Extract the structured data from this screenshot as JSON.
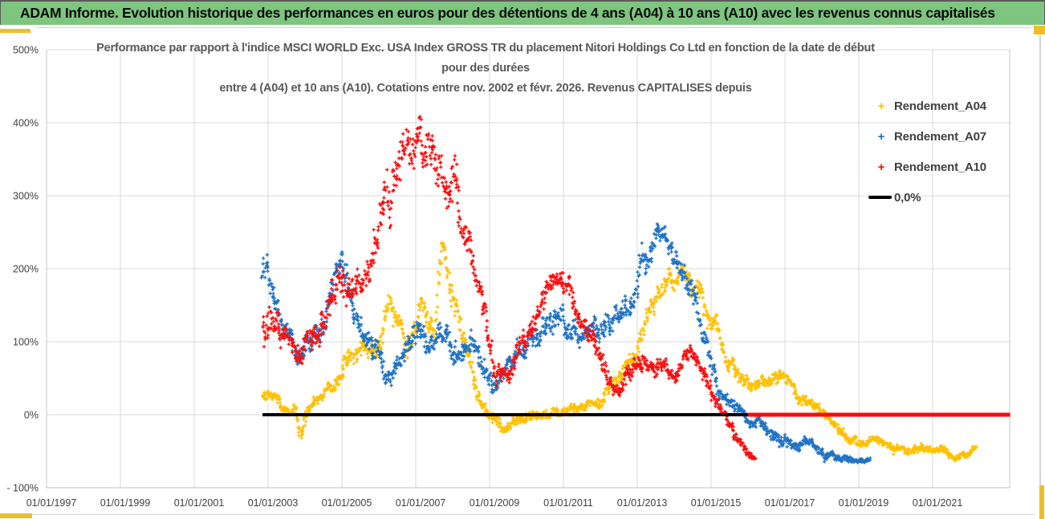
{
  "header": {
    "title": "ADAM Informe. Evolution historique des performances en euros pour des détentions de 4 ans (A04) à 10 ans (A10) avec les revenus connus capitalisés"
  },
  "chart": {
    "title_line1": "Performance par rapport à l'indice MSCI WORLD Exc. USA Index GROSS TR  du placement Nitori Holdings Co Ltd en fonction de la date de début",
    "title_line2": "pour des durées",
    "title_line3": "entre 4 (A04) et 10 ans (A10). Cotations entre nov. 2002 et févr. 2026. Revenus CAPITALISES depuis"
  },
  "legend": {
    "items": [
      {
        "label": "Rendement_A04",
        "marker": "plus",
        "color": "#FFC000"
      },
      {
        "label": "Rendement_A07",
        "marker": "plus",
        "color": "#1F72C4"
      },
      {
        "label": "Rendement_A10",
        "marker": "plus",
        "color": "#F90D0D"
      },
      {
        "label": "0,0%",
        "marker": "line",
        "color": "#000000"
      }
    ]
  },
  "chart_data": {
    "type": "scatter",
    "title": "Performance par rapport à l'indice MSCI WORLD Exc. USA Index GROSS TR du placement Nitori Holdings Co Ltd en fonction de la date de début pour des durées entre 4 (A04) et 10 ans (A10). Cotations entre nov. 2002 et févr. 2026. Revenus CAPITALISES depuis",
    "marker": "plus",
    "grid": true,
    "legend_position": "right-top",
    "x_axis": {
      "tick_labels": [
        "01/01/1997",
        "01/01/1999",
        "01/01/2001",
        "01/01/2003",
        "01/01/2005",
        "01/01/2007",
        "01/01/2009",
        "01/01/2011",
        "01/01/2013",
        "01/01/2015",
        "01/01/2017",
        "01/01/2019",
        "01/01/2021"
      ],
      "tick_years": [
        1997,
        1999,
        2001,
        2003,
        2005,
        2007,
        2009,
        2011,
        2013,
        2015,
        2017,
        2019,
        2021
      ],
      "range_years": [
        1997.0,
        2023.1
      ]
    },
    "y_axis": {
      "tick_labels": [
        "500%",
        "400%",
        "300%",
        "200%",
        "100%",
        "0%",
        "- 100%"
      ],
      "tick_values": [
        500,
        400,
        300,
        200,
        100,
        0,
        -100
      ],
      "range": [
        -100,
        500
      ],
      "unit": "percent"
    },
    "representation": "Each series is a dense scatter of '+' marks; path points are [year, mean_%, half_spread_%] sampled from the plot.",
    "series": [
      {
        "name": "Rendement_A04",
        "color": "#FFC000",
        "start": 2002.85,
        "end": 2022.2,
        "path": [
          [
            2002.85,
            28,
            13
          ],
          [
            2003.2,
            24,
            12
          ],
          [
            2003.45,
            10,
            9
          ],
          [
            2003.6,
            3,
            8
          ],
          [
            2003.72,
            14,
            8
          ],
          [
            2003.88,
            -28,
            14
          ],
          [
            2004.05,
            2,
            10
          ],
          [
            2004.3,
            22,
            12
          ],
          [
            2004.55,
            40,
            13
          ],
          [
            2004.8,
            30,
            12
          ],
          [
            2005.1,
            62,
            18
          ],
          [
            2005.5,
            85,
            20
          ],
          [
            2005.9,
            88,
            22
          ],
          [
            2006.35,
            158,
            24
          ],
          [
            2006.75,
            75,
            22
          ],
          [
            2007.15,
            160,
            25
          ],
          [
            2007.5,
            125,
            25
          ],
          [
            2007.73,
            235,
            18
          ],
          [
            2007.95,
            170,
            28
          ],
          [
            2008.2,
            118,
            24
          ],
          [
            2008.5,
            55,
            18
          ],
          [
            2008.8,
            12,
            12
          ],
          [
            2009.15,
            -6,
            10
          ],
          [
            2009.45,
            -17,
            9
          ],
          [
            2009.8,
            -8,
            9
          ],
          [
            2010.3,
            -4,
            9
          ],
          [
            2010.8,
            6,
            10
          ],
          [
            2011.3,
            14,
            10
          ],
          [
            2011.9,
            16,
            10
          ],
          [
            2012.5,
            45,
            14
          ],
          [
            2013.0,
            88,
            18
          ],
          [
            2013.45,
            150,
            22
          ],
          [
            2013.85,
            185,
            22
          ],
          [
            2014.3,
            200,
            20
          ],
          [
            2014.75,
            155,
            22
          ],
          [
            2015.1,
            122,
            20
          ],
          [
            2015.5,
            70,
            18
          ],
          [
            2015.9,
            45,
            14
          ],
          [
            2016.4,
            40,
            13
          ],
          [
            2016.9,
            48,
            12
          ],
          [
            2017.4,
            26,
            12
          ],
          [
            2017.85,
            6,
            10
          ],
          [
            2018.3,
            -18,
            10
          ],
          [
            2018.7,
            -32,
            9
          ],
          [
            2019.05,
            -43,
            8
          ],
          [
            2019.5,
            -34,
            8
          ],
          [
            2019.95,
            -46,
            8
          ],
          [
            2020.3,
            -54,
            7
          ],
          [
            2020.7,
            -42,
            8
          ],
          [
            2021.1,
            -44,
            8
          ],
          [
            2021.6,
            -56,
            7
          ],
          [
            2021.95,
            -52,
            7
          ],
          [
            2022.2,
            -46,
            6
          ]
        ]
      },
      {
        "name": "Rendement_A07",
        "color": "#1F72C4",
        "start": 2002.85,
        "end": 2019.3,
        "path": [
          [
            2002.85,
            195,
            32
          ],
          [
            2003.2,
            152,
            28
          ],
          [
            2003.6,
            112,
            24
          ],
          [
            2003.85,
            78,
            20
          ],
          [
            2004.2,
            112,
            24
          ],
          [
            2004.6,
            142,
            28
          ],
          [
            2004.95,
            196,
            28
          ],
          [
            2005.3,
            152,
            28
          ],
          [
            2005.65,
            102,
            22
          ],
          [
            2006.0,
            92,
            24
          ],
          [
            2006.3,
            58,
            20
          ],
          [
            2006.7,
            92,
            20
          ],
          [
            2007.0,
            112,
            24
          ],
          [
            2007.4,
            82,
            20
          ],
          [
            2007.75,
            122,
            24
          ],
          [
            2008.1,
            92,
            24
          ],
          [
            2008.5,
            118,
            24
          ],
          [
            2008.85,
            62,
            20
          ],
          [
            2009.15,
            28,
            16
          ],
          [
            2009.5,
            62,
            20
          ],
          [
            2009.9,
            100,
            24
          ],
          [
            2010.4,
            118,
            24
          ],
          [
            2010.9,
            128,
            24
          ],
          [
            2011.4,
            114,
            22
          ],
          [
            2011.9,
            124,
            22
          ],
          [
            2012.4,
            138,
            24
          ],
          [
            2012.8,
            158,
            28
          ],
          [
            2013.2,
            208,
            28
          ],
          [
            2013.6,
            242,
            22
          ],
          [
            2014.0,
            214,
            28
          ],
          [
            2014.5,
            182,
            28
          ],
          [
            2014.9,
            95,
            24
          ],
          [
            2015.2,
            28,
            15
          ],
          [
            2015.6,
            6,
            12
          ],
          [
            2016.0,
            -8,
            10
          ],
          [
            2016.3,
            -4,
            10
          ],
          [
            2016.7,
            -28,
            11
          ],
          [
            2017.2,
            -38,
            11
          ],
          [
            2017.6,
            -34,
            11
          ],
          [
            2018.0,
            -52,
            9
          ],
          [
            2018.5,
            -64,
            8
          ],
          [
            2018.9,
            -61,
            7
          ],
          [
            2019.3,
            -57,
            6
          ]
        ]
      },
      {
        "name": "Rendement_A10",
        "color": "#F90D0D",
        "start": 2002.85,
        "end": 2016.2,
        "flat_zero_from": 2016.0,
        "flat_zero_to": 2023.1,
        "path": [
          [
            2002.85,
            132,
            45
          ],
          [
            2003.3,
            105,
            30
          ],
          [
            2003.7,
            76,
            22
          ],
          [
            2004.1,
            92,
            26
          ],
          [
            2004.5,
            148,
            34
          ],
          [
            2004.9,
            198,
            34
          ],
          [
            2005.3,
            172,
            30
          ],
          [
            2005.7,
            198,
            34
          ],
          [
            2006.1,
            258,
            44
          ],
          [
            2006.5,
            342,
            52
          ],
          [
            2006.9,
            328,
            56
          ],
          [
            2007.3,
            368,
            48
          ],
          [
            2007.7,
            348,
            52
          ],
          [
            2008.0,
            328,
            48
          ],
          [
            2008.3,
            258,
            38
          ],
          [
            2008.6,
            215,
            30
          ],
          [
            2008.9,
            148,
            30
          ],
          [
            2009.15,
            62,
            20
          ],
          [
            2009.45,
            46,
            15
          ],
          [
            2009.8,
            80,
            20
          ],
          [
            2010.2,
            132,
            28
          ],
          [
            2010.6,
            185,
            24
          ],
          [
            2010.95,
            196,
            20
          ],
          [
            2011.25,
            162,
            24
          ],
          [
            2011.6,
            122,
            24
          ],
          [
            2012.0,
            72,
            20
          ],
          [
            2012.4,
            22,
            14
          ],
          [
            2012.8,
            56,
            18
          ],
          [
            2013.2,
            84,
            18
          ],
          [
            2013.6,
            70,
            17
          ],
          [
            2014.0,
            56,
            15
          ],
          [
            2014.4,
            95,
            17
          ],
          [
            2014.8,
            62,
            17
          ],
          [
            2015.1,
            22,
            14
          ],
          [
            2015.4,
            -10,
            12
          ],
          [
            2015.7,
            -34,
            11
          ],
          [
            2016.0,
            -50,
            9
          ],
          [
            2016.2,
            -55,
            7
          ]
        ]
      }
    ],
    "reference_lines": [
      {
        "name": "0,0%",
        "y": 0,
        "color": "#000000",
        "x_start": 2002.85,
        "x_end": 2016.05,
        "width": 4
      },
      {
        "name": "A10-zero-flat",
        "y": 0,
        "color": "#F90D0D",
        "x_start": 2016.0,
        "x_end": 2023.1,
        "width": 5
      }
    ]
  }
}
